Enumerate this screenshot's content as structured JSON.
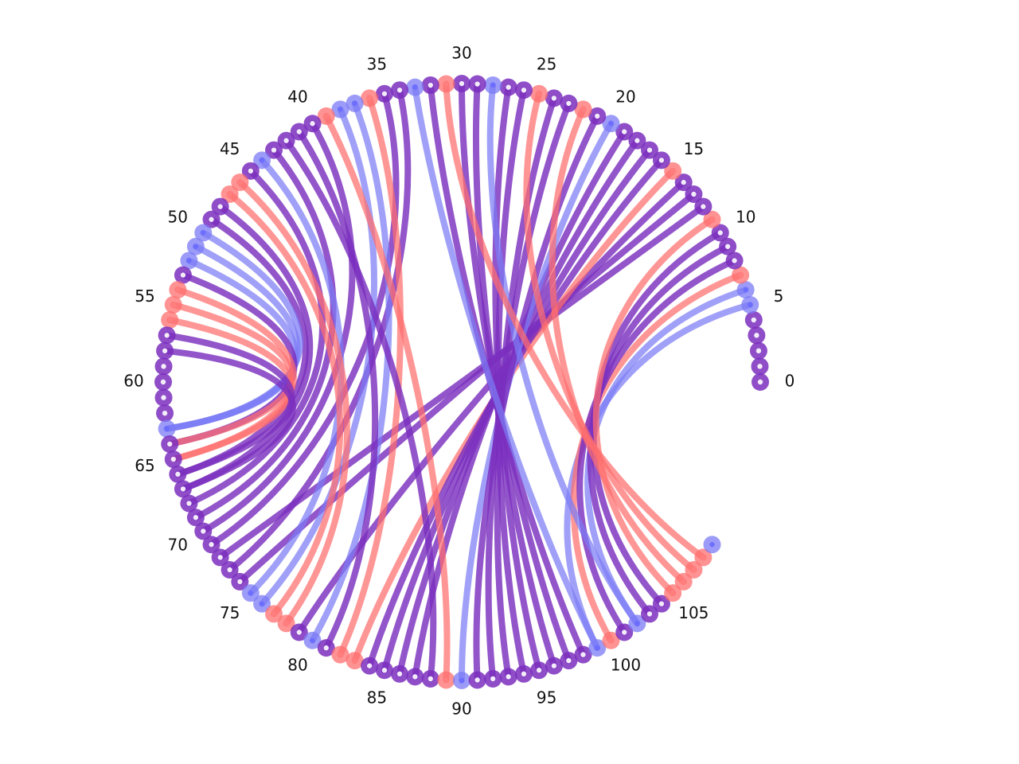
{
  "chart_data": {
    "type": "chord",
    "node_count": 110,
    "tick_labels": [
      "0",
      "5",
      "10",
      "15",
      "20",
      "25",
      "30",
      "35",
      "40",
      "45",
      "50",
      "55",
      "60",
      "65",
      "70",
      "75",
      "80",
      "85",
      "90",
      "95",
      "100",
      "105"
    ],
    "colors": {
      "purple": "#7b2fbe",
      "blue": "#7b7bf5",
      "red": "#ff6e6e",
      "node_center_purple": "#9c5fd6",
      "node_center_blue": "#6a6aff",
      "node_center_red": "#ff8080"
    },
    "nodes": [
      {
        "i": 0,
        "c": "purple"
      },
      {
        "i": 1,
        "c": "purple"
      },
      {
        "i": 2,
        "c": "purple"
      },
      {
        "i": 3,
        "c": "purple"
      },
      {
        "i": 4,
        "c": "purple"
      },
      {
        "i": 5,
        "c": "blue"
      },
      {
        "i": 6,
        "c": "blue"
      },
      {
        "i": 7,
        "c": "red"
      },
      {
        "i": 8,
        "c": "purple"
      },
      {
        "i": 9,
        "c": "purple"
      },
      {
        "i": 10,
        "c": "purple"
      },
      {
        "i": 11,
        "c": "red"
      },
      {
        "i": 12,
        "c": "purple"
      },
      {
        "i": 13,
        "c": "purple"
      },
      {
        "i": 14,
        "c": "purple"
      },
      {
        "i": 15,
        "c": "red"
      },
      {
        "i": 16,
        "c": "purple"
      },
      {
        "i": 17,
        "c": "purple"
      },
      {
        "i": 18,
        "c": "purple"
      },
      {
        "i": 19,
        "c": "purple"
      },
      {
        "i": 20,
        "c": "blue"
      },
      {
        "i": 21,
        "c": "purple"
      },
      {
        "i": 22,
        "c": "red"
      },
      {
        "i": 23,
        "c": "purple"
      },
      {
        "i": 24,
        "c": "purple"
      },
      {
        "i": 25,
        "c": "red"
      },
      {
        "i": 26,
        "c": "purple"
      },
      {
        "i": 27,
        "c": "purple"
      },
      {
        "i": 28,
        "c": "blue"
      },
      {
        "i": 29,
        "c": "purple"
      },
      {
        "i": 30,
        "c": "purple"
      },
      {
        "i": 31,
        "c": "red"
      },
      {
        "i": 32,
        "c": "purple"
      },
      {
        "i": 33,
        "c": "blue"
      },
      {
        "i": 34,
        "c": "purple"
      },
      {
        "i": 35,
        "c": "purple"
      },
      {
        "i": 36,
        "c": "red"
      },
      {
        "i": 37,
        "c": "blue"
      },
      {
        "i": 38,
        "c": "blue"
      },
      {
        "i": 39,
        "c": "red"
      },
      {
        "i": 40,
        "c": "purple"
      },
      {
        "i": 41,
        "c": "purple"
      },
      {
        "i": 42,
        "c": "purple"
      },
      {
        "i": 43,
        "c": "purple"
      },
      {
        "i": 44,
        "c": "blue"
      },
      {
        "i": 45,
        "c": "purple"
      },
      {
        "i": 46,
        "c": "red"
      },
      {
        "i": 47,
        "c": "red"
      },
      {
        "i": 48,
        "c": "purple"
      },
      {
        "i": 49,
        "c": "purple"
      },
      {
        "i": 50,
        "c": "blue"
      },
      {
        "i": 51,
        "c": "blue"
      },
      {
        "i": 52,
        "c": "blue"
      },
      {
        "i": 53,
        "c": "purple"
      },
      {
        "i": 54,
        "c": "red"
      },
      {
        "i": 55,
        "c": "red"
      },
      {
        "i": 56,
        "c": "red"
      },
      {
        "i": 57,
        "c": "purple"
      },
      {
        "i": 58,
        "c": "purple"
      },
      {
        "i": 59,
        "c": "purple"
      },
      {
        "i": 60,
        "c": "purple"
      },
      {
        "i": 61,
        "c": "purple"
      },
      {
        "i": 62,
        "c": "purple"
      },
      {
        "i": 63,
        "c": "blue"
      },
      {
        "i": 64,
        "c": "purple"
      },
      {
        "i": 65,
        "c": "purple"
      },
      {
        "i": 66,
        "c": "purple"
      },
      {
        "i": 67,
        "c": "purple"
      },
      {
        "i": 68,
        "c": "purple"
      },
      {
        "i": 69,
        "c": "purple"
      },
      {
        "i": 70,
        "c": "purple"
      },
      {
        "i": 71,
        "c": "purple"
      },
      {
        "i": 72,
        "c": "purple"
      },
      {
        "i": 73,
        "c": "purple"
      },
      {
        "i": 74,
        "c": "purple"
      },
      {
        "i": 75,
        "c": "blue"
      },
      {
        "i": 76,
        "c": "blue"
      },
      {
        "i": 77,
        "c": "red"
      },
      {
        "i": 78,
        "c": "red"
      },
      {
        "i": 79,
        "c": "purple"
      },
      {
        "i": 80,
        "c": "blue"
      },
      {
        "i": 81,
        "c": "purple"
      },
      {
        "i": 82,
        "c": "red"
      },
      {
        "i": 83,
        "c": "red"
      },
      {
        "i": 84,
        "c": "purple"
      },
      {
        "i": 85,
        "c": "purple"
      },
      {
        "i": 86,
        "c": "purple"
      },
      {
        "i": 87,
        "c": "purple"
      },
      {
        "i": 88,
        "c": "purple"
      },
      {
        "i": 89,
        "c": "red"
      },
      {
        "i": 90,
        "c": "blue"
      },
      {
        "i": 91,
        "c": "purple"
      },
      {
        "i": 92,
        "c": "purple"
      },
      {
        "i": 93,
        "c": "purple"
      },
      {
        "i": 94,
        "c": "purple"
      },
      {
        "i": 95,
        "c": "purple"
      },
      {
        "i": 96,
        "c": "purple"
      },
      {
        "i": 97,
        "c": "purple"
      },
      {
        "i": 98,
        "c": "purple"
      },
      {
        "i": 99,
        "c": "blue"
      },
      {
        "i": 100,
        "c": "red"
      },
      {
        "i": 101,
        "c": "purple"
      },
      {
        "i": 102,
        "c": "blue"
      },
      {
        "i": 103,
        "c": "purple"
      },
      {
        "i": 104,
        "c": "purple"
      },
      {
        "i": 105,
        "c": "red"
      },
      {
        "i": 106,
        "c": "red"
      },
      {
        "i": 107,
        "c": "red"
      },
      {
        "i": 108,
        "c": "red"
      },
      {
        "i": 109,
        "c": "blue"
      }
    ],
    "links": [
      {
        "from": 5,
        "to": 99,
        "c": "blue"
      },
      {
        "from": 6,
        "to": 102,
        "c": "blue"
      },
      {
        "from": 7,
        "to": 100,
        "c": "red"
      },
      {
        "from": 8,
        "to": 101,
        "c": "purple"
      },
      {
        "from": 9,
        "to": 103,
        "c": "purple"
      },
      {
        "from": 10,
        "to": 104,
        "c": "purple"
      },
      {
        "from": 11,
        "to": 105,
        "c": "red"
      },
      {
        "from": 12,
        "to": 72,
        "c": "purple"
      },
      {
        "from": 13,
        "to": 74,
        "c": "purple"
      },
      {
        "from": 14,
        "to": 79,
        "c": "purple"
      },
      {
        "from": 15,
        "to": 83,
        "c": "red"
      },
      {
        "from": 16,
        "to": 84,
        "c": "purple"
      },
      {
        "from": 17,
        "to": 85,
        "c": "purple"
      },
      {
        "from": 18,
        "to": 86,
        "c": "purple"
      },
      {
        "from": 19,
        "to": 87,
        "c": "purple"
      },
      {
        "from": 20,
        "to": 90,
        "c": "blue"
      },
      {
        "from": 21,
        "to": 91,
        "c": "purple"
      },
      {
        "from": 22,
        "to": 106,
        "c": "red"
      },
      {
        "from": 23,
        "to": 92,
        "c": "purple"
      },
      {
        "from": 24,
        "to": 93,
        "c": "purple"
      },
      {
        "from": 25,
        "to": 107,
        "c": "red"
      },
      {
        "from": 26,
        "to": 94,
        "c": "purple"
      },
      {
        "from": 27,
        "to": 95,
        "c": "purple"
      },
      {
        "from": 28,
        "to": 102,
        "c": "blue"
      },
      {
        "from": 29,
        "to": 96,
        "c": "purple"
      },
      {
        "from": 30,
        "to": 97,
        "c": "purple"
      },
      {
        "from": 31,
        "to": 108,
        "c": "red"
      },
      {
        "from": 32,
        "to": 98,
        "c": "purple"
      },
      {
        "from": 33,
        "to": 99,
        "c": "blue"
      },
      {
        "from": 34,
        "to": 73,
        "c": "purple"
      },
      {
        "from": 35,
        "to": 71,
        "c": "purple"
      },
      {
        "from": 36,
        "to": 82,
        "c": "red"
      },
      {
        "from": 37,
        "to": 80,
        "c": "blue"
      },
      {
        "from": 38,
        "to": 76,
        "c": "blue"
      },
      {
        "from": 39,
        "to": 89,
        "c": "red"
      },
      {
        "from": 40,
        "to": 70,
        "c": "purple"
      },
      {
        "from": 41,
        "to": 81,
        "c": "purple"
      },
      {
        "from": 42,
        "to": 88,
        "c": "purple"
      },
      {
        "from": 43,
        "to": 69,
        "c": "purple"
      },
      {
        "from": 44,
        "to": 75,
        "c": "blue"
      },
      {
        "from": 45,
        "to": 68,
        "c": "purple"
      },
      {
        "from": 46,
        "to": 78,
        "c": "red"
      },
      {
        "from": 47,
        "to": 77,
        "c": "red"
      },
      {
        "from": 48,
        "to": 67,
        "c": "purple"
      },
      {
        "from": 49,
        "to": 66,
        "c": "purple"
      },
      {
        "from": 50,
        "to": 63,
        "c": "blue"
      },
      {
        "from": 51,
        "to": 63,
        "c": "blue"
      },
      {
        "from": 52,
        "to": 63,
        "c": "blue"
      },
      {
        "from": 53,
        "to": 64,
        "c": "purple"
      },
      {
        "from": 54,
        "to": 65,
        "c": "red"
      },
      {
        "from": 55,
        "to": 64,
        "c": "red"
      },
      {
        "from": 56,
        "to": 65,
        "c": "red"
      },
      {
        "from": 57,
        "to": 66,
        "c": "purple"
      },
      {
        "from": 58,
        "to": 67,
        "c": "purple"
      }
    ]
  }
}
